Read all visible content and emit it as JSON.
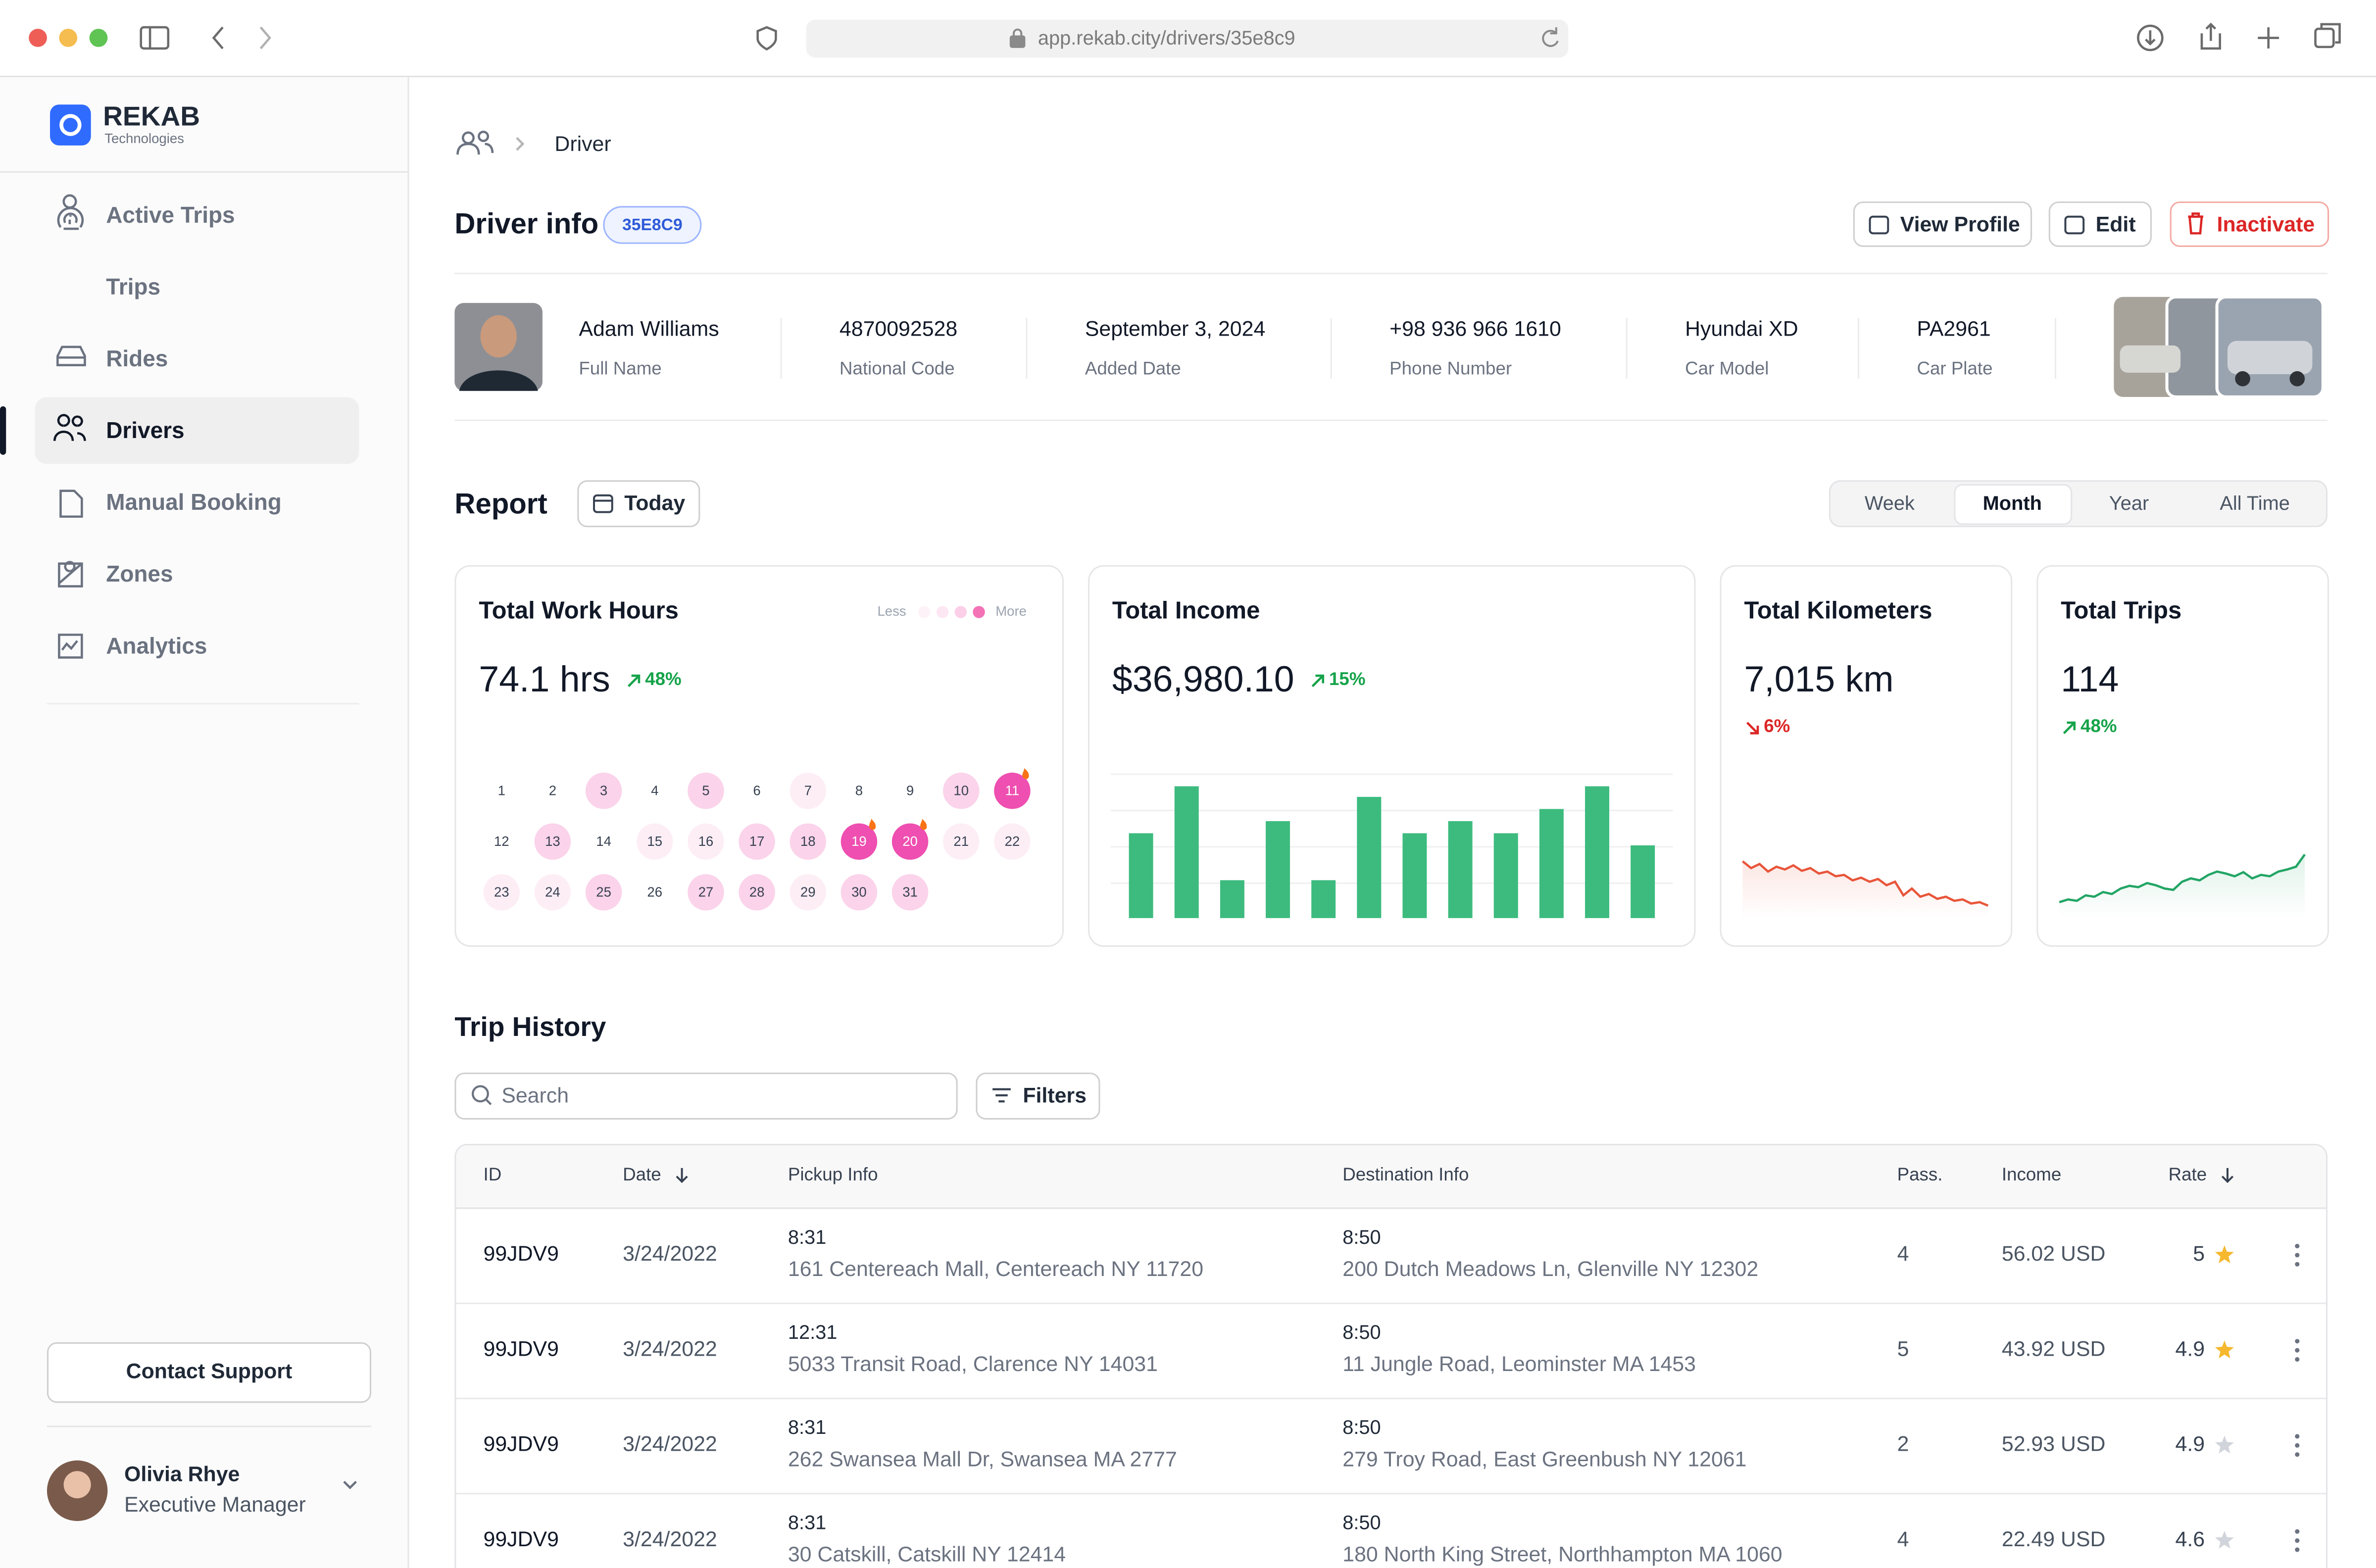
{
  "browser": {
    "url": "app.rekab.city/drivers/35e8c9"
  },
  "sidebar": {
    "brand": "REKAB",
    "brand_sub": "Technologies",
    "nav": [
      "Active Trips",
      "Trips",
      "Rides",
      "Drivers",
      "Manual Booking",
      "Zones",
      "Analytics"
    ],
    "active": 3,
    "support": "Contact Support",
    "user": {
      "name": "Olivia Rhye",
      "role": "Executive Manager"
    }
  },
  "breadcrumb": "Driver",
  "driver": {
    "title": "Driver info",
    "id": "35E8C9",
    "buttons": [
      "View Profile",
      "Edit",
      "Inactivate"
    ],
    "fields": [
      {
        "value": "Adam Williams",
        "label": "Full Name"
      },
      {
        "value": "4870092528",
        "label": "National Code"
      },
      {
        "value": "September 3, 2024",
        "label": "Added Date"
      },
      {
        "value": "+98 936 966 1610",
        "label": "Phone Number"
      },
      {
        "value": "Hyundai XD",
        "label": "Car Model"
      },
      {
        "value": "PA2961",
        "label": "Car Plate"
      }
    ]
  },
  "report": {
    "title": "Report",
    "today": "Today",
    "tabs": [
      "Week",
      "Month",
      "Year",
      "All Time"
    ],
    "active_tab": 1,
    "work_hours": {
      "type": "calendar",
      "title": "Total Work Hours",
      "value": "74.1 hrs",
      "change": "48%",
      "direction": "up",
      "less": "Less",
      "more": "More",
      "days": [
        {
          "day": 1,
          "level": 0
        },
        {
          "day": 2,
          "level": 0
        },
        {
          "day": 3,
          "level": 2
        },
        {
          "day": 4,
          "level": 0
        },
        {
          "day": 5,
          "level": 2
        },
        {
          "day": 6,
          "level": 0
        },
        {
          "day": 7,
          "level": 1
        },
        {
          "day": 8,
          "level": 0
        },
        {
          "day": 9,
          "level": 0
        },
        {
          "day": 10,
          "level": 2
        },
        {
          "day": 11,
          "level": 4,
          "fire": true
        },
        {
          "day": 12,
          "level": 0
        },
        {
          "day": 13,
          "level": 2
        },
        {
          "day": 14,
          "level": 0
        },
        {
          "day": 15,
          "level": 1
        },
        {
          "day": 16,
          "level": 1
        },
        {
          "day": 17,
          "level": 2
        },
        {
          "day": 18,
          "level": 2
        },
        {
          "day": 19,
          "level": 4,
          "fire": true
        },
        {
          "day": 20,
          "level": 4,
          "fire": true
        },
        {
          "day": 21,
          "level": 1
        },
        {
          "day": 22,
          "level": 1
        },
        {
          "day": 23,
          "level": 1
        },
        {
          "day": 24,
          "level": 1
        },
        {
          "day": 25,
          "level": 2
        },
        {
          "day": 26,
          "level": 0
        },
        {
          "day": 27,
          "level": 2
        },
        {
          "day": 28,
          "level": 2
        },
        {
          "day": 29,
          "level": 1
        },
        {
          "day": 30,
          "level": 2
        },
        {
          "day": 31,
          "level": 2
        }
      ]
    },
    "income": {
      "type": "bar",
      "title": "Total Income",
      "value": "$36,980.10",
      "change": "15%",
      "direction": "up",
      "color": "#3dbb7f",
      "ylim": [
        0,
        100
      ],
      "values": [
        56,
        87,
        25,
        64,
        25,
        80,
        56,
        64,
        56,
        72,
        87,
        48
      ]
    },
    "kilometers": {
      "type": "line",
      "title": "Total Kilometers",
      "value": "7,015 km",
      "change": "6%",
      "direction": "down",
      "color": "#e8553a",
      "ylim": [
        0,
        100
      ],
      "values": [
        70,
        60,
        66,
        55,
        62,
        58,
        64,
        56,
        60,
        52,
        55,
        48,
        50,
        42,
        46,
        40,
        44,
        35,
        40,
        20,
        30,
        18,
        22,
        15,
        18,
        12,
        14,
        8,
        10,
        5
      ]
    },
    "trips": {
      "type": "line",
      "title": "Total Trips",
      "value": "114",
      "change": "48%",
      "direction": "up",
      "color": "#22a565",
      "ylim": [
        0,
        100
      ],
      "values": [
        10,
        14,
        12,
        20,
        18,
        25,
        22,
        30,
        34,
        32,
        38,
        35,
        30,
        28,
        40,
        45,
        42,
        50,
        55,
        52,
        48,
        54,
        45,
        50,
        48,
        55,
        58,
        62,
        80
      ]
    }
  },
  "trip_history": {
    "title": "Trip History",
    "search": "Search",
    "filters": "Filters",
    "columns": [
      "ID",
      "Date",
      "Pickup Info",
      "Destination Info",
      "Pass.",
      "Income",
      "Rate"
    ],
    "rows": [
      {
        "id": "99JDV9",
        "date": "3/24/2022",
        "pickup_time": "8:31",
        "pickup": "161 Centereach Mall, Centereach NY 11720",
        "dest_time": "8:50",
        "dest": "200 Dutch Meadows Ln, Glenville NY 12302",
        "pass": 4,
        "income": "56.02 USD",
        "rate": 5,
        "starred": true
      },
      {
        "id": "99JDV9",
        "date": "3/24/2022",
        "pickup_time": "12:31",
        "pickup": "5033 Transit Road, Clarence NY 14031",
        "dest_time": "8:50",
        "dest": "11 Jungle Road, Leominster MA 1453",
        "pass": 5,
        "income": "43.92 USD",
        "rate": 4.9,
        "starred": true
      },
      {
        "id": "99JDV9",
        "date": "3/24/2022",
        "pickup_time": "8:31",
        "pickup": "262 Swansea Mall Dr, Swansea MA 2777",
        "dest_time": "8:50",
        "dest": "279 Troy Road, East Greenbush NY 12061",
        "pass": 2,
        "income": "52.93 USD",
        "rate": 4.9,
        "starred": false
      },
      {
        "id": "99JDV9",
        "date": "3/24/2022",
        "pickup_time": "8:31",
        "pickup": "30 Catskill, Catskill NY 12414",
        "dest_time": "8:50",
        "dest": "180 North King Street, Northhampton MA 1060",
        "pass": 4,
        "income": "22.49 USD",
        "rate": 4.6,
        "starred": false
      }
    ]
  }
}
